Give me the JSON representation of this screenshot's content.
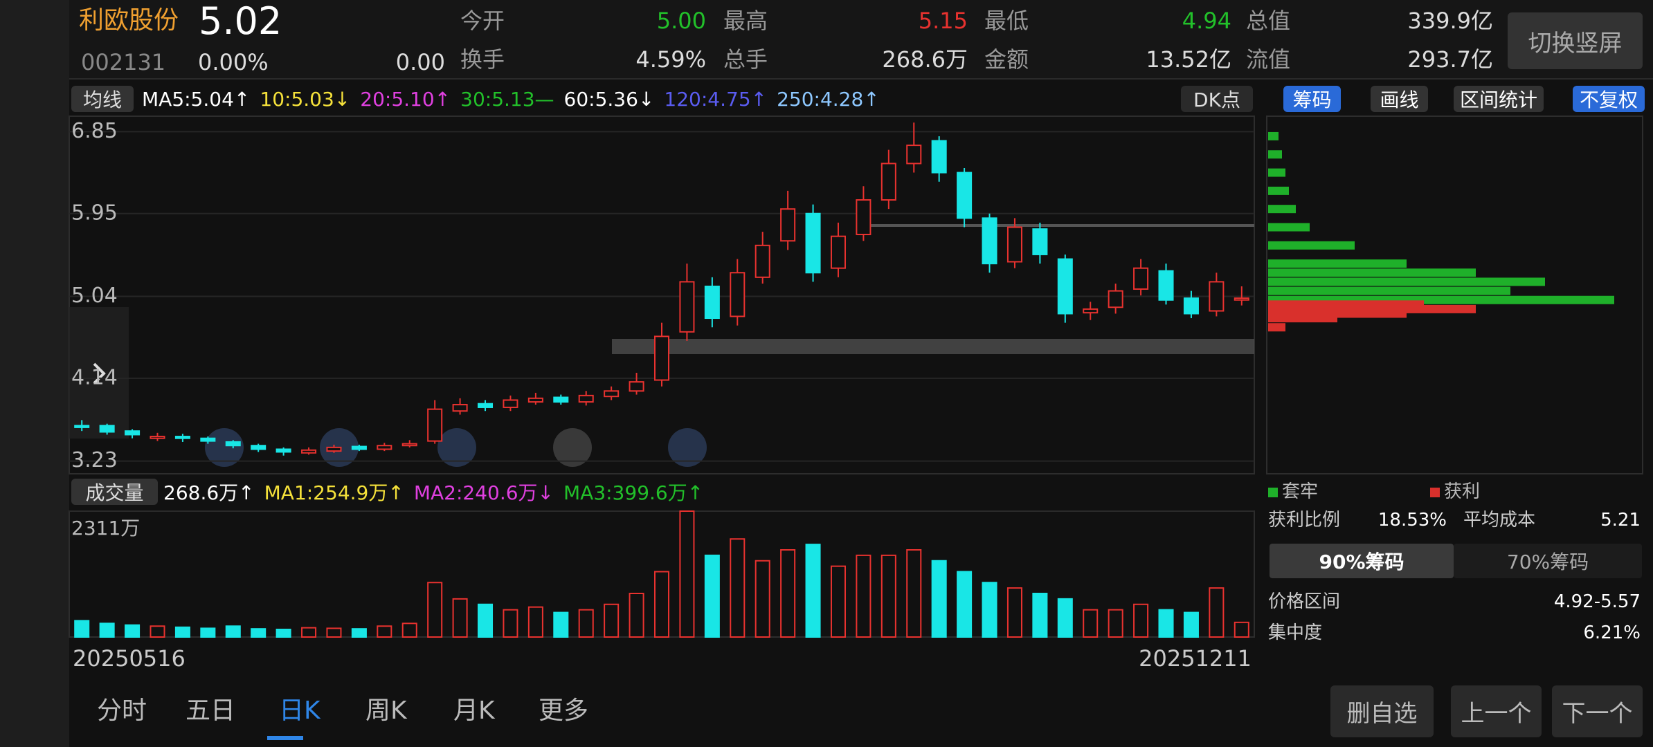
{
  "header": {
    "name": "利欧股份",
    "price": "5.02",
    "code": "002131",
    "change_pct": "0.00%",
    "change": "0.00",
    "stats": [
      {
        "label": "今开",
        "value": "5.00"
      },
      {
        "label": "换手",
        "value": "4.59%"
      },
      {
        "label": "最高",
        "value": "5.15"
      },
      {
        "label": "总手",
        "value": "268.6万"
      },
      {
        "label": "最低",
        "value": "4.94"
      },
      {
        "label": "金额",
        "value": "13.52亿"
      },
      {
        "label": "总值",
        "value": "339.9亿"
      },
      {
        "label": "流值",
        "value": "293.7亿"
      }
    ],
    "rotate_button": "切换竖屏"
  },
  "ma_legend": {
    "selector": "均线",
    "items": [
      "MA5:5.04↑",
      "10:5.03↓",
      "20:5.10↑",
      "30:5.13—",
      "60:5.36↓",
      "120:4.75↑",
      "250:4.28↑"
    ],
    "dk": "DK点",
    "tabs": [
      "筹码",
      "画线",
      "区间统计",
      "不复权"
    ]
  },
  "volume_legend": {
    "selector": "成交量",
    "items": [
      "268.6万↑",
      "MA1:254.9万↑",
      "MA2:240.6万↓",
      "MA3:399.6万↑"
    ]
  },
  "chart_data": {
    "type": "candlestick",
    "up_color": "#e8322f",
    "down_color": "#19e6e6",
    "ylim": [
      3.09,
      7.02
    ],
    "yticks": [
      6.85,
      5.95,
      5.04,
      4.14,
      3.23
    ],
    "open": [
      3.62,
      3.62,
      3.56,
      3.48,
      3.5,
      3.48,
      3.44,
      3.4,
      3.36,
      3.32,
      3.34,
      3.39,
      3.36,
      3.4,
      3.45,
      3.78,
      3.86,
      3.82,
      3.88,
      3.93,
      3.88,
      3.94,
      4.0,
      4.12,
      4.65,
      5.15,
      4.82,
      5.25,
      5.65,
      5.95,
      5.35,
      5.72,
      6.1,
      6.5,
      6.75,
      6.4,
      5.9,
      5.42,
      5.78,
      5.45,
      4.86,
      4.92,
      5.12,
      5.32,
      5.02,
      4.88,
      5.0
    ],
    "high": [
      3.68,
      3.64,
      3.58,
      3.54,
      3.53,
      3.5,
      3.46,
      3.42,
      3.38,
      3.38,
      3.41,
      3.41,
      3.43,
      3.46,
      3.9,
      3.92,
      3.9,
      3.95,
      3.98,
      3.96,
      4.0,
      4.05,
      4.2,
      4.75,
      5.4,
      5.25,
      5.45,
      5.75,
      6.2,
      6.05,
      5.85,
      6.25,
      6.65,
      6.95,
      6.8,
      6.45,
      5.95,
      5.9,
      5.85,
      5.5,
      4.98,
      5.18,
      5.45,
      5.4,
      5.1,
      5.3,
      5.15
    ],
    "low": [
      3.56,
      3.52,
      3.48,
      3.45,
      3.44,
      3.42,
      3.37,
      3.33,
      3.29,
      3.3,
      3.32,
      3.34,
      3.34,
      3.38,
      3.42,
      3.74,
      3.78,
      3.78,
      3.85,
      3.85,
      3.84,
      3.9,
      3.96,
      4.05,
      4.55,
      4.7,
      4.72,
      5.18,
      5.55,
      5.2,
      5.25,
      5.65,
      6.0,
      6.4,
      6.3,
      5.8,
      5.3,
      5.35,
      5.4,
      4.75,
      4.78,
      4.85,
      5.05,
      4.95,
      4.8,
      4.82,
      4.94
    ],
    "close": [
      3.6,
      3.55,
      3.52,
      3.5,
      3.48,
      3.45,
      3.4,
      3.36,
      3.33,
      3.35,
      3.38,
      3.36,
      3.4,
      3.42,
      3.8,
      3.85,
      3.82,
      3.9,
      3.92,
      3.88,
      3.95,
      4.0,
      4.1,
      4.6,
      5.2,
      4.8,
      5.3,
      5.6,
      6.0,
      5.3,
      5.7,
      6.1,
      6.5,
      6.7,
      6.4,
      5.9,
      5.4,
      5.8,
      5.5,
      4.85,
      4.9,
      5.1,
      5.35,
      5.0,
      4.85,
      5.2,
      5.02
    ],
    "volume": [
      300,
      250,
      220,
      200,
      180,
      160,
      200,
      150,
      140,
      170,
      160,
      150,
      200,
      250,
      1000,
      700,
      600,
      500,
      550,
      450,
      500,
      600,
      800,
      1200,
      2311,
      1500,
      1800,
      1400,
      1600,
      1700,
      1300,
      1500,
      1500,
      1600,
      1400,
      1200,
      1000,
      900,
      800,
      700,
      500,
      500,
      600,
      500,
      450,
      900,
      269
    ],
    "volume_ylim": [
      0,
      2311
    ],
    "volume_yticks": [
      {
        "value": 2311,
        "label": "2311万"
      }
    ],
    "x_start": "20250516",
    "x_end": "20251211"
  },
  "chips": {
    "legend": [
      "套牢",
      "获利"
    ],
    "colors": [
      "#1fb02a",
      "#d9302c"
    ],
    "xlim": [
      0,
      100
    ],
    "trapped": {
      "prices": [
        6.8,
        6.6,
        6.4,
        6.2,
        6.0,
        5.8,
        5.6,
        5.4,
        5.3,
        5.2,
        5.1,
        5.0
      ],
      "amounts": [
        3,
        4,
        5,
        6,
        8,
        12,
        25,
        40,
        60,
        80,
        70,
        100
      ]
    },
    "profit": {
      "prices": [
        4.95,
        4.9,
        4.85,
        4.8,
        4.7
      ],
      "amounts": [
        45,
        60,
        40,
        20,
        5
      ]
    },
    "stats": [
      {
        "label": "获利比例",
        "value": "18.53%"
      },
      {
        "label": "平均成本",
        "value": "5.21"
      }
    ],
    "buttons": [
      "90%筹码",
      "70%筹码"
    ],
    "rows": [
      {
        "label": "价格区间",
        "value": "4.92-5.57"
      },
      {
        "label": "集中度",
        "value": "6.21%"
      }
    ]
  },
  "period_tabs": [
    "分时",
    "五日",
    "日K",
    "周K",
    "月K",
    "更多"
  ],
  "actions": [
    "删自选",
    "上一个",
    "下一个"
  ]
}
